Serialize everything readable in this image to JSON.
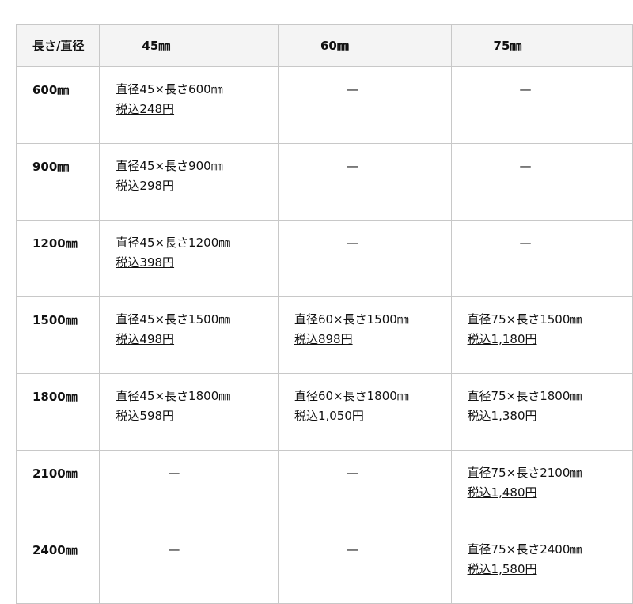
{
  "header": [
    "長さ/直径",
    "45㎜",
    "60㎜",
    "75㎜"
  ],
  "dash": "—",
  "rows": [
    {
      "label": "600㎜",
      "cells": [
        {
          "name": "直径45×長さ600㎜",
          "price": "税込248円"
        },
        null,
        null
      ]
    },
    {
      "label": "900㎜",
      "cells": [
        {
          "name": "直径45×長さ900㎜",
          "price": "税込298円"
        },
        null,
        null
      ]
    },
    {
      "label": "1200㎜",
      "cells": [
        {
          "name": "直径45×長さ1200㎜",
          "price": "税込398円"
        },
        null,
        null
      ]
    },
    {
      "label": "1500㎜",
      "cells": [
        {
          "name": "直径45×長さ1500㎜",
          "price": "税込498円"
        },
        {
          "name": "直径60×長さ1500㎜",
          "price": "税込898円"
        },
        {
          "name": "直径75×長さ1500㎜",
          "price": "税込1,180円"
        }
      ]
    },
    {
      "label": "1800㎜",
      "cells": [
        {
          "name": "直径45×長さ1800㎜",
          "price": "税込598円"
        },
        {
          "name": "直径60×長さ1800㎜",
          "price": "税込1,050円"
        },
        {
          "name": "直径75×長さ1800㎜",
          "price": "税込1,380円"
        }
      ]
    },
    {
      "label": "2100㎜",
      "cells": [
        null,
        null,
        {
          "name": "直径75×長さ2100㎜",
          "price": "税込1,480円"
        }
      ]
    },
    {
      "label": "2400㎜",
      "cells": [
        null,
        null,
        {
          "name": "直径75×長さ2400㎜",
          "price": "税込1,580円"
        }
      ]
    }
  ]
}
